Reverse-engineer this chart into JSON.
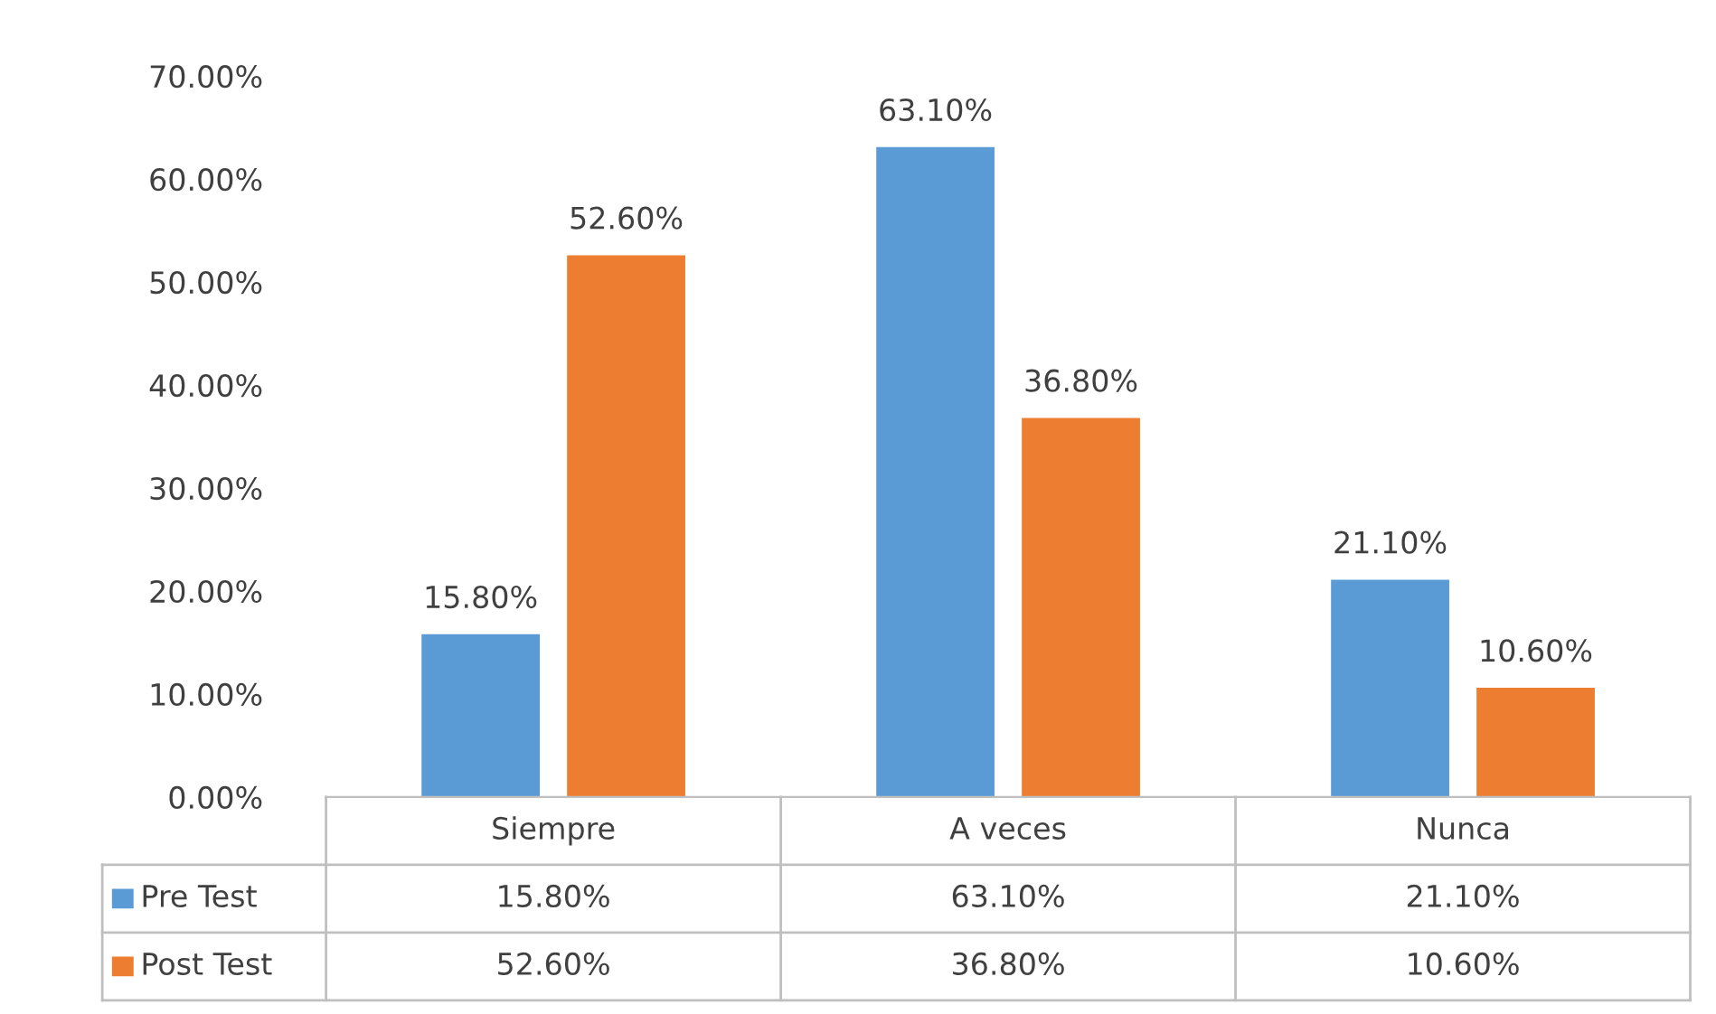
{
  "chart_data": {
    "type": "bar",
    "categories": [
      "Siempre",
      "A veces",
      "Nunca"
    ],
    "series": [
      {
        "name": "Pre Test",
        "color": "#5b9bd5",
        "values": [
          15.8,
          63.1,
          21.1
        ],
        "value_labels": [
          "15.80%",
          "63.10%",
          "21.10%"
        ]
      },
      {
        "name": "Post Test",
        "color": "#ed7d31",
        "values": [
          52.6,
          36.8,
          10.6
        ],
        "value_labels": [
          "52.60%",
          "36.80%",
          "10.60%"
        ]
      }
    ],
    "ylim": [
      0,
      70
    ],
    "yticks": [
      {
        "value": 0,
        "label": "0.00%"
      },
      {
        "value": 10,
        "label": "10.00%"
      },
      {
        "value": 20,
        "label": "20.00%"
      },
      {
        "value": 30,
        "label": "30.00%"
      },
      {
        "value": 40,
        "label": "40.00%"
      },
      {
        "value": 50,
        "label": "50.00%"
      },
      {
        "value": 60,
        "label": "60.00%"
      },
      {
        "value": 70,
        "label": "70.00%"
      }
    ],
    "grid": false,
    "legend": "bottom left"
  }
}
